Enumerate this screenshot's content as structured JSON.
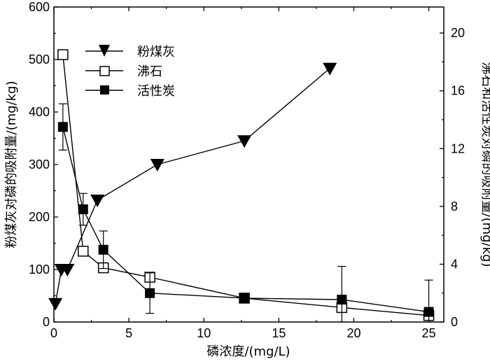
{
  "chart_data": {
    "type": "line",
    "xlabel": "磷浓度/(mg/L)",
    "ylabel_left": "粉煤灰对磷的吸附量/(mg/kg)",
    "ylabel_right": "沸石和活性炭对磷的吸附量/(mg/kg)",
    "xlim": [
      0,
      26
    ],
    "ylim_left": [
      0,
      600
    ],
    "ylim_right": [
      0,
      21.8
    ],
    "x_ticks": [
      0,
      5,
      10,
      15,
      20,
      25
    ],
    "y_left_ticks": [
      0,
      100,
      200,
      300,
      400,
      500,
      600
    ],
    "y_right_ticks": [
      0,
      4,
      8,
      12,
      16,
      20
    ],
    "legend_position": "top-left",
    "grid": false,
    "series": [
      {
        "name": "粉煤灰",
        "axis": "left",
        "marker": "triangle-down-filled",
        "x": [
          0.1,
          0.5,
          0.9,
          2.9,
          6.9,
          12.7,
          18.4
        ],
        "y": [
          35,
          100,
          100,
          232,
          300,
          345,
          483
        ],
        "err": [
          null,
          null,
          null,
          null,
          null,
          null,
          null
        ]
      },
      {
        "name": "沸石",
        "axis": "right",
        "marker": "square-open",
        "x": [
          0.6,
          1.95,
          3.3,
          6.4,
          12.7,
          19.2,
          25.0
        ],
        "y": [
          18.5,
          4.9,
          3.75,
          3.1,
          1.65,
          1.0,
          0.45
        ],
        "err": [
          null,
          null,
          null,
          null,
          null,
          null,
          null
        ]
      },
      {
        "name": "活性炭",
        "axis": "right",
        "marker": "square-filled",
        "x": [
          0.6,
          1.95,
          3.3,
          6.4,
          12.7,
          19.2,
          25.0
        ],
        "y": [
          13.5,
          7.8,
          5.0,
          2.0,
          1.65,
          1.55,
          0.7
        ],
        "err": [
          1.6,
          1.1,
          1.3,
          1.4,
          null,
          2.3,
          2.2
        ]
      }
    ]
  }
}
